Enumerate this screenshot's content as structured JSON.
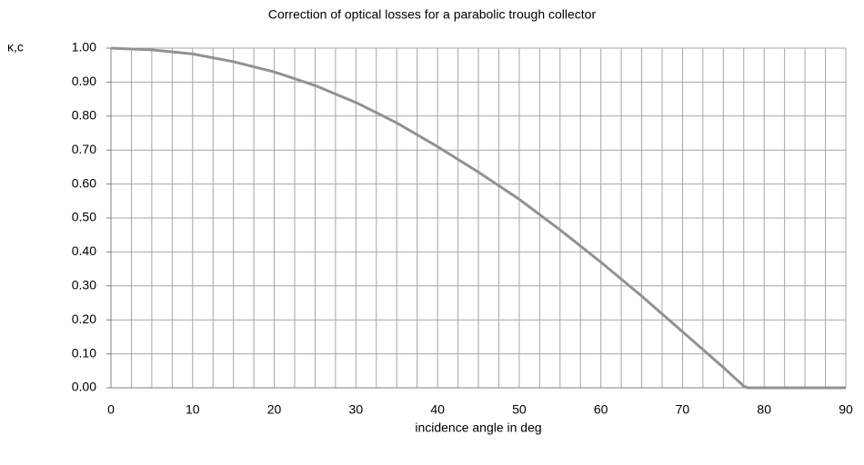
{
  "chart_data": {
    "type": "line",
    "title": "Correction of optical losses for a parabolic trough collector",
    "xlabel": "incidence angle in deg",
    "ylabel": "κ,c",
    "xlim": [
      0,
      90
    ],
    "ylim": [
      0,
      1
    ],
    "xticks": [
      0,
      10,
      20,
      30,
      40,
      50,
      60,
      70,
      80,
      90
    ],
    "xminorticks": [
      2.5,
      5,
      7.5,
      12.5,
      15,
      17.5,
      22.5,
      25,
      27.5,
      32.5,
      35,
      37.5,
      42.5,
      45,
      47.5,
      52.5,
      55,
      57.5,
      62.5,
      65,
      67.5,
      72.5,
      75,
      77.5,
      82.5,
      85,
      87.5
    ],
    "yticks": [
      {
        "value": 0,
        "label": "0.00"
      },
      {
        "value": 0.1,
        "label": "0.10"
      },
      {
        "value": 0.2,
        "label": "0.20"
      },
      {
        "value": 0.3,
        "label": "0.30"
      },
      {
        "value": 0.4,
        "label": "0.40"
      },
      {
        "value": 0.5,
        "label": "0.50"
      },
      {
        "value": 0.6,
        "label": "0.60"
      },
      {
        "value": 0.7,
        "label": "0.70"
      },
      {
        "value": 0.8,
        "label": "0.80"
      },
      {
        "value": 0.9,
        "label": "0.90"
      },
      {
        "value": 1,
        "label": "1.00"
      }
    ],
    "grid": true,
    "x": [
      0,
      5,
      10,
      15,
      20,
      25,
      30,
      35,
      40,
      45,
      50,
      55,
      60,
      65,
      70,
      75,
      77.5,
      78,
      80,
      85,
      90
    ],
    "series": [
      {
        "color": "#929292",
        "values": [
          1.0,
          0.995,
          0.983,
          0.96,
          0.93,
          0.89,
          0.84,
          0.78,
          0.71,
          0.635,
          0.555,
          0.465,
          0.37,
          0.27,
          0.165,
          0.06,
          0.005,
          0,
          0,
          0,
          0
        ]
      }
    ]
  }
}
